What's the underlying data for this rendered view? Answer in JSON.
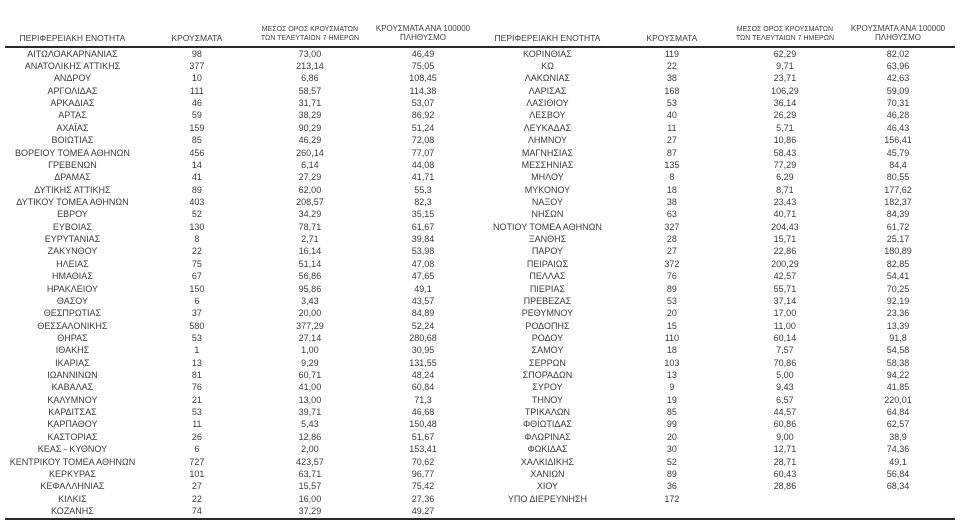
{
  "columns": {
    "region": "ΠΕΡΙΦΕΡΕΙΑΚΗ ΕΝΟΤΗΤΑ",
    "cases": "ΚΡΟΥΣΜΑΤΑ",
    "avg7_line1": "ΜΕΣΟΣ ΟΡΟΣ ΚΡΟΥΣΜΑΤΩΝ",
    "avg7_line2": "ΤΩΝ ΤΕΛΕΥΤΑΙΩΝ 7 ΗΜΕΡΩΝ",
    "per100k_line1": "ΚΡΟΥΣΜΑΤΑ ΑΝΑ 100000",
    "per100k_line2": "ΠΛΗΘΥΣΜΟ"
  },
  "left_table": {
    "rows": [
      [
        "ΑΙΤΩΛΟΑΚΑΡΝΑΝΙΑΣ",
        "98",
        "73,00",
        "46,49"
      ],
      [
        "ΑΝΑΤΟΛΙΚΗΣ ΑΤΤΙΚΗΣ",
        "377",
        "213,14",
        "75,05"
      ],
      [
        "ΑΝΔΡΟΥ",
        "10",
        "6,86",
        "108,45"
      ],
      [
        "ΑΡΓΟΛΙΔΑΣ",
        "111",
        "58,57",
        "114,38"
      ],
      [
        "ΑΡΚΑΔΙΑΣ",
        "46",
        "31,71",
        "53,07"
      ],
      [
        "ΑΡΤΑΣ",
        "59",
        "38,29",
        "86,92"
      ],
      [
        "ΑΧΑΪΑΣ",
        "159",
        "90,29",
        "51,24"
      ],
      [
        "ΒΟΙΩΤΙΑΣ",
        "85",
        "46,29",
        "72,08"
      ],
      [
        "ΒΟΡΕΙΟΥ ΤΟΜΕΑ ΑΘΗΝΩΝ",
        "456",
        "260,14",
        "77,07"
      ],
      [
        "ΓΡΕΒΕΝΩΝ",
        "14",
        "6,14",
        "44,08"
      ],
      [
        "ΔΡΑΜΑΣ",
        "41",
        "27,29",
        "41,71"
      ],
      [
        "ΔΥΤΙΚΗΣ ΑΤΤΙΚΗΣ",
        "89",
        "62,00",
        "55,3"
      ],
      [
        "ΔΥΤΙΚΟΥ ΤΟΜΕΑ ΑΘΗΝΩΝ",
        "403",
        "208,57",
        "82,3"
      ],
      [
        "ΕΒΡΟΥ",
        "52",
        "34,29",
        "35,15"
      ],
      [
        "ΕΥΒΟΙΑΣ",
        "130",
        "78,71",
        "61,67"
      ],
      [
        "ΕΥΡΥΤΑΝΙΑΣ",
        "8",
        "2,71",
        "39,84"
      ],
      [
        "ΖΑΚΥΝΘΟΥ",
        "22",
        "16,14",
        "53,98"
      ],
      [
        "ΗΛΕΙΑΣ",
        "75",
        "51,14",
        "47,08"
      ],
      [
        "ΗΜΑΘΙΑΣ",
        "67",
        "56,86",
        "47,65"
      ],
      [
        "ΗΡΑΚΛΕΙΟΥ",
        "150",
        "95,86",
        "49,1"
      ],
      [
        "ΘΑΣΟΥ",
        "6",
        "3,43",
        "43,57"
      ],
      [
        "ΘΕΣΠΡΩΤΙΑΣ",
        "37",
        "20,00",
        "84,89"
      ],
      [
        "ΘΕΣΣΑΛΟΝΙΚΗΣ",
        "580",
        "377,29",
        "52,24"
      ],
      [
        "ΘΗΡΑΣ",
        "53",
        "27,14",
        "280,68"
      ],
      [
        "ΙΘΑΚΗΣ",
        "1",
        "1,00",
        "30,95"
      ],
      [
        "ΙΚΑΡΙΑΣ",
        "13",
        "9,29",
        "131,55"
      ],
      [
        "ΙΩΑΝΝΙΝΩΝ",
        "81",
        "60,71",
        "48,24"
      ],
      [
        "ΚΑΒΑΛΑΣ",
        "76",
        "41,00",
        "60,84"
      ],
      [
        "ΚΑΛΥΜΝΟΥ",
        "21",
        "13,00",
        "71,3"
      ],
      [
        "ΚΑΡΔΙΤΣΑΣ",
        "53",
        "39,71",
        "46,68"
      ],
      [
        "ΚΑΡΠΑΘΟΥ",
        "11",
        "5,43",
        "150,48"
      ],
      [
        "ΚΑΣΤΟΡΙΑΣ",
        "26",
        "12,86",
        "51,67"
      ],
      [
        "ΚΕΑΣ - ΚΥΘΝΟΥ",
        "6",
        "2,00",
        "153,41"
      ],
      [
        "ΚΕΝΤΡΙΚΟΥ ΤΟΜΕΑ ΑΘΗΝΩΝ",
        "727",
        "423,57",
        "70,62"
      ],
      [
        "ΚΕΡΚΥΡΑΣ",
        "101",
        "63,71",
        "96,77"
      ],
      [
        "ΚΕΦΑΛΛΗΝΙΑΣ",
        "27",
        "15,57",
        "75,42"
      ],
      [
        "ΚΙΛΚΙΣ",
        "22",
        "16,00",
        "27,36"
      ],
      [
        "ΚΟΖΑΝΗΣ",
        "74",
        "37,29",
        "49,27"
      ]
    ]
  },
  "right_table": {
    "rows": [
      [
        "ΚΟΡΙΝΘΙΑΣ",
        "119",
        "62,29",
        "82,02"
      ],
      [
        "ΚΩ",
        "22",
        "9,71",
        "63,96"
      ],
      [
        "ΛΑΚΩΝΙΑΣ",
        "38",
        "23,71",
        "42,63"
      ],
      [
        "ΛΑΡΙΣΑΣ",
        "168",
        "106,29",
        "59,09"
      ],
      [
        "ΛΑΣΙΘΙΟΥ",
        "53",
        "36,14",
        "70,31"
      ],
      [
        "ΛΕΣΒΟΥ",
        "40",
        "26,29",
        "46,28"
      ],
      [
        "ΛΕΥΚΑΔΑΣ",
        "11",
        "5,71",
        "46,43"
      ],
      [
        "ΛΗΜΝΟΥ",
        "27",
        "10,86",
        "156,41"
      ],
      [
        "ΜΑΓΝΗΣΙΑΣ",
        "87",
        "58,43",
        "45,79"
      ],
      [
        "ΜΕΣΣΗΝΙΑΣ",
        "135",
        "77,29",
        "84,4"
      ],
      [
        "ΜΗΛΟΥ",
        "8",
        "6,29",
        "80,55"
      ],
      [
        "ΜΥΚΟΝΟΥ",
        "18",
        "8,71",
        "177,62"
      ],
      [
        "ΝΑΞΟΥ",
        "38",
        "23,43",
        "182,37"
      ],
      [
        "ΝΗΣΩΝ",
        "63",
        "40,71",
        "84,39"
      ],
      [
        "ΝΟΤΙΟΥ ΤΟΜΕΑ ΑΘΗΝΩΝ",
        "327",
        "204,43",
        "61,72"
      ],
      [
        "ΞΑΝΘΗΣ",
        "28",
        "15,71",
        "25,17"
      ],
      [
        "ΠΑΡΟΥ",
        "27",
        "22,86",
        "180,89"
      ],
      [
        "ΠΕΙΡΑΙΩΣ",
        "372",
        "200,29",
        "82,85"
      ],
      [
        "ΠΕΛΛΑΣ",
        "76",
        "42,57",
        "54,41"
      ],
      [
        "ΠΙΕΡΙΑΣ",
        "89",
        "55,71",
        "70,25"
      ],
      [
        "ΠΡΕΒΕΖΑΣ",
        "53",
        "37,14",
        "92,19"
      ],
      [
        "ΡΕΘΥΜΝΟΥ",
        "20",
        "17,00",
        "23,36"
      ],
      [
        "ΡΟΔΟΠΗΣ",
        "15",
        "11,00",
        "13,39"
      ],
      [
        "ΡΟΔΟΥ",
        "110",
        "60,14",
        "91,8"
      ],
      [
        "ΣΑΜΟΥ",
        "18",
        "7,57",
        "54,58"
      ],
      [
        "ΣΕΡΡΩΝ",
        "103",
        "70,86",
        "58,38"
      ],
      [
        "ΣΠΟΡΑΔΩΝ",
        "13",
        "5,00",
        "94,22"
      ],
      [
        "ΣΥΡΟΥ",
        "9",
        "9,43",
        "41,85"
      ],
      [
        "ΤΗΝΟΥ",
        "19",
        "6,57",
        "220,01"
      ],
      [
        "ΤΡΙΚΑΛΩΝ",
        "85",
        "44,57",
        "64,84"
      ],
      [
        "ΦΘΙΩΤΙΔΑΣ",
        "99",
        "60,86",
        "62,57"
      ],
      [
        "ΦΛΩΡΙΝΑΣ",
        "20",
        "9,00",
        "38,9"
      ],
      [
        "ΦΩΚΙΔΑΣ",
        "30",
        "12,71",
        "74,36"
      ],
      [
        "ΧΑΛΚΙΔΙΚΗΣ",
        "52",
        "28,71",
        "49,1"
      ],
      [
        "ΧΑΝΙΩΝ",
        "89",
        "60,43",
        "56,84"
      ],
      [
        "ΧΙΟΥ",
        "36",
        "28,86",
        "68,34"
      ],
      [
        "ΥΠΟ ΔΙΕΡΕΥΝΗΣΗ",
        "172",
        "",
        ""
      ]
    ]
  }
}
